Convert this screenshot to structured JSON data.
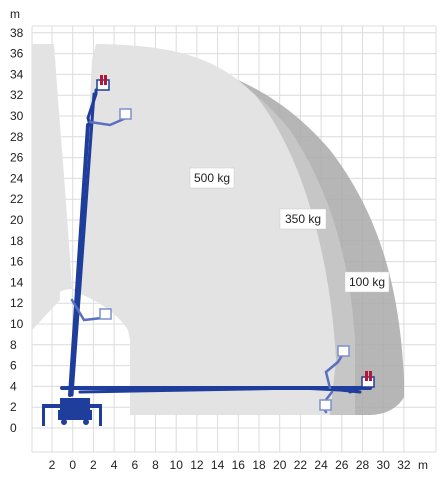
{
  "units": {
    "y": "m",
    "x": "m"
  },
  "x_ticks": [
    "2",
    "0",
    "2",
    "4",
    "6",
    "8",
    "10",
    "12",
    "14",
    "16",
    "18",
    "20",
    "22",
    "24",
    "26",
    "28",
    "30",
    "32"
  ],
  "y_ticks": [
    "0",
    "2",
    "4",
    "6",
    "8",
    "10",
    "12",
    "14",
    "16",
    "18",
    "20",
    "22",
    "24",
    "26",
    "28",
    "30",
    "32",
    "34",
    "36",
    "38"
  ],
  "zones": [
    {
      "label": "500 kg",
      "color": "#e2e2e2"
    },
    {
      "label": "350 kg",
      "color": "#c8c8c8"
    },
    {
      "label": "100 kg",
      "color": "#a8a8a8"
    }
  ],
  "colors": {
    "boom": "#1f3d9a",
    "basket": "#7d8fd0",
    "basket_loaded": "#b0183a",
    "grid": "#dcdcdc"
  }
}
